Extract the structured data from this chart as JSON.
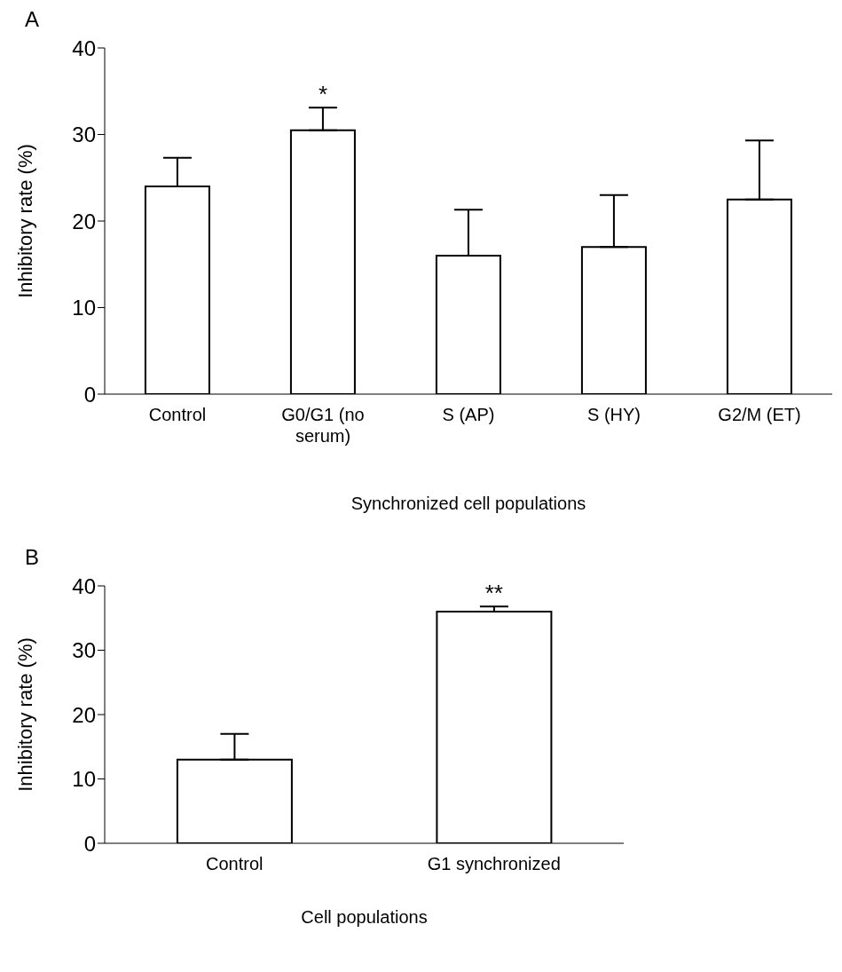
{
  "chart_data": [
    {
      "type": "bar",
      "title": "A",
      "categories": [
        "Control",
        "G0/G1 (no serum)",
        "S (AP)",
        "S (HY)",
        "G2/M (ET)"
      ],
      "values": [
        24,
        30.5,
        16,
        17,
        22.5
      ],
      "errors": [
        [
          24,
          27.3
        ],
        [
          30.5,
          33.1
        ],
        [
          16,
          21.3
        ],
        [
          17,
          23
        ],
        [
          22.5,
          29.3
        ]
      ],
      "color": "#ffffff",
      "ylim": [
        0,
        40
      ],
      "yticks": [
        0,
        10,
        20,
        30,
        40
      ],
      "xlabel": "Synchronized cell populations",
      "ylabel": "Inhibitory rate (%)",
      "grid": false,
      "legend": false,
      "annotations": [
        {
          "text": "*",
          "x": "G0/G1 (no serum)",
          "y": 33.1
        }
      ]
    },
    {
      "type": "bar",
      "title": "B",
      "categories": [
        "Control",
        "G1 synchronized"
      ],
      "values": [
        13,
        36
      ],
      "errors": [
        [
          13,
          17
        ],
        [
          36,
          36.8
        ]
      ],
      "color": "#ffffff",
      "ylim": [
        0,
        40
      ],
      "yticks": [
        0,
        10,
        20,
        30,
        40
      ],
      "xlabel": "Cell populations",
      "ylabel": "Inhibitory rate (%)",
      "grid": false,
      "legend": false,
      "annotations": [
        {
          "text": "**",
          "x": "G1 synchronized",
          "y": 36.8
        }
      ]
    }
  ]
}
